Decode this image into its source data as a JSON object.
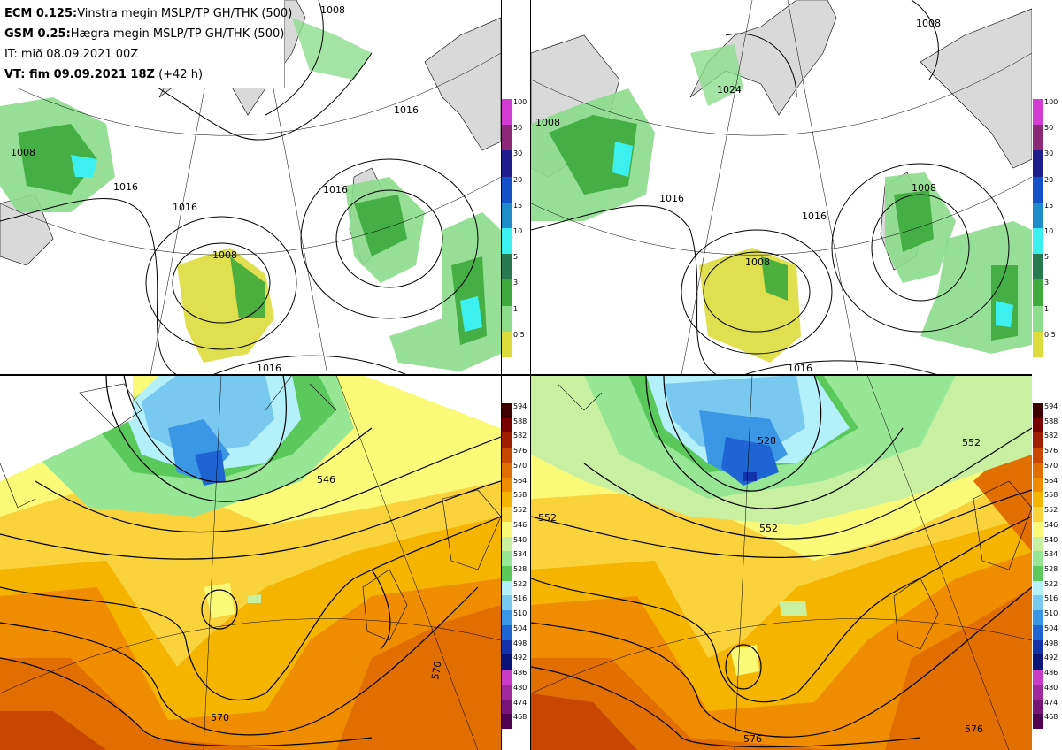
{
  "header": {
    "line1_bold": "ECM 0.125:",
    "line1_rest": "Vinstra megin MSLP/TP GH/THK (500)",
    "line2_bold": "GSM 0.25:",
    "line2_rest": "Hægra megin MSLP/TP GH/THK (500)",
    "line3": "IT: mið 08.09.2021 00Z",
    "line4_bold": "VT: fim 09.09.2021 18Z",
    "line4_rest": " (+42 h)"
  },
  "precip_colorbar": {
    "levels": [
      {
        "label": "100",
        "color": "#d23cd2"
      },
      {
        "label": "50",
        "color": "#8c2878"
      },
      {
        "label": "30",
        "color": "#1e1e8c"
      },
      {
        "label": "20",
        "color": "#1450c8"
      },
      {
        "label": "15",
        "color": "#1e8cc8"
      },
      {
        "label": "10",
        "color": "#3cf0f0"
      },
      {
        "label": "5",
        "color": "#287850"
      },
      {
        "label": "3",
        "color": "#3caa3c"
      },
      {
        "label": "1",
        "color": "#8cdc8c"
      },
      {
        "label": "0.5",
        "color": "#dcdc3c"
      }
    ]
  },
  "thickness_colorbar": {
    "levels": [
      {
        "label": "594",
        "color": "#3c0000"
      },
      {
        "label": "588",
        "color": "#780000"
      },
      {
        "label": "582",
        "color": "#a01e00"
      },
      {
        "label": "576",
        "color": "#c84600"
      },
      {
        "label": "570",
        "color": "#e06e00"
      },
      {
        "label": "564",
        "color": "#f08c00"
      },
      {
        "label": "558",
        "color": "#f5b400"
      },
      {
        "label": "552",
        "color": "#fad23c"
      },
      {
        "label": "546",
        "color": "#fafa78"
      },
      {
        "label": "540",
        "color": "#c8f0a0"
      },
      {
        "label": "534",
        "color": "#96e696"
      },
      {
        "label": "528",
        "color": "#5ac85a"
      },
      {
        "label": "522",
        "color": "#b4f0fa"
      },
      {
        "label": "516",
        "color": "#78c8f0"
      },
      {
        "label": "510",
        "color": "#3c96e6"
      },
      {
        "label": "504",
        "color": "#1e64d2"
      },
      {
        "label": "498",
        "color": "#1432aa"
      },
      {
        "label": "492",
        "color": "#0a1478"
      },
      {
        "label": "486",
        "color": "#c83cc8"
      },
      {
        "label": "480",
        "color": "#a0289c"
      },
      {
        "label": "474",
        "color": "#781478"
      },
      {
        "label": "468",
        "color": "#500050"
      }
    ]
  },
  "labels": {
    "tl": [
      "1008",
      "1016",
      "1016",
      "1016",
      "1008",
      "1016",
      "1016",
      "1008"
    ],
    "tr": [
      "1008",
      "1024",
      "1016",
      "1016",
      "1008",
      "1016",
      "1008",
      "1008"
    ],
    "bl": [
      "546",
      "570",
      "570"
    ],
    "br": [
      "528",
      "552",
      "552",
      "552",
      "576",
      "576"
    ]
  },
  "colors": {
    "land": "#d9d9d9",
    "sea": "#ffffff",
    "contour": "#000000"
  }
}
